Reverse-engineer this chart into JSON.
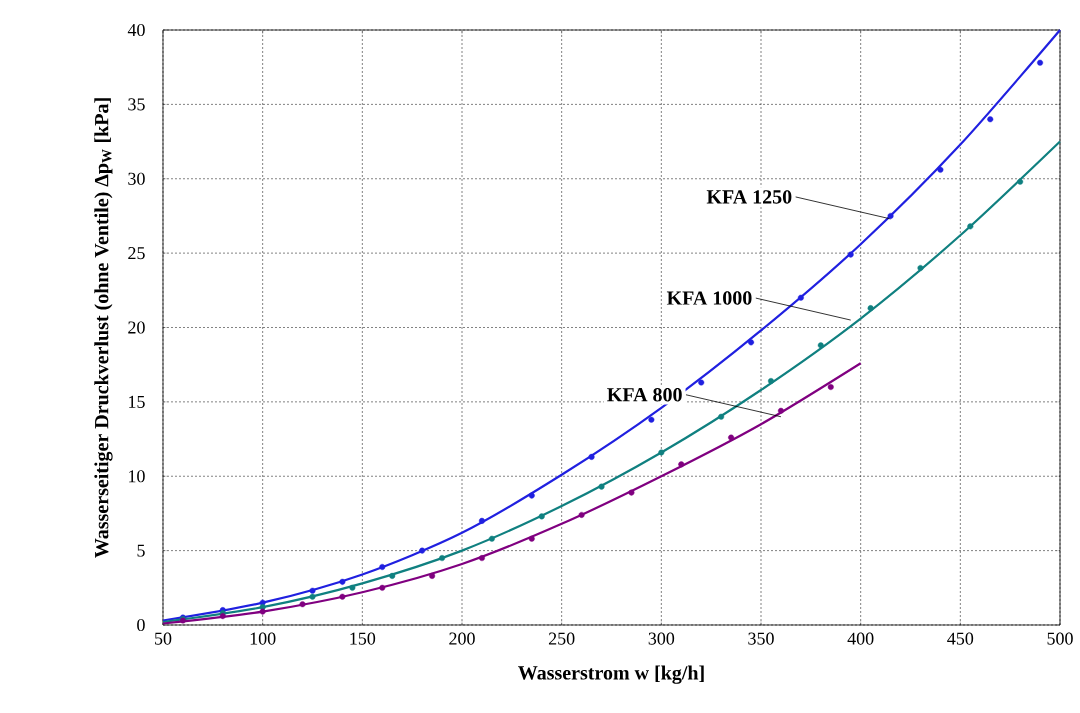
{
  "chart_data": {
    "type": "line",
    "xlabel": "Wasserstrom w   [kg/h]",
    "ylabel": "Wasserseitiger Druckverlust (ohne Ventile) Δp$_{W}$ [kPa]",
    "xlim": [
      50,
      500
    ],
    "ylim": [
      0,
      40
    ],
    "xticks": [
      50,
      100,
      150,
      200,
      250,
      300,
      350,
      400,
      450,
      500
    ],
    "yticks": [
      0,
      5,
      10,
      15,
      20,
      25,
      30,
      35,
      40
    ],
    "grid": true,
    "line_style": "solid",
    "series": [
      {
        "color": "#2020e0",
        "x": [
          50,
          100,
          150,
          200,
          250,
          300,
          350,
          400,
          450,
          500
        ],
        "values": [
          0.3,
          1.5,
          3.4,
          6.2,
          10.1,
          14.6,
          19.8,
          25.6,
          32.3,
          40.0
        ]
      },
      {
        "color": "#108080",
        "x": [
          50,
          100,
          150,
          200,
          250,
          300,
          350,
          400,
          450,
          500
        ],
        "values": [
          0.2,
          1.2,
          2.8,
          5.0,
          8.0,
          11.6,
          15.8,
          20.6,
          26.2,
          32.5
        ]
      },
      {
        "color": "#800080",
        "x": [
          50,
          100,
          150,
          200,
          250,
          300,
          350,
          400
        ],
        "values": [
          0.1,
          0.9,
          2.2,
          4.1,
          6.8,
          10.0,
          13.5,
          17.6
        ]
      },
      {
        "type": "scatter",
        "color": "#2020e0",
        "x": [
          60,
          80,
          100,
          125,
          140,
          160,
          180,
          210,
          235,
          265,
          295,
          320,
          345,
          370,
          395,
          415,
          440,
          465,
          490
        ],
        "values": [
          0.5,
          1.0,
          1.5,
          2.3,
          2.9,
          3.9,
          5.0,
          7.0,
          8.7,
          11.3,
          13.8,
          16.3,
          19.0,
          22.0,
          24.9,
          27.5,
          30.6,
          34.0,
          37.8
        ]
      },
      {
        "type": "scatter",
        "color": "#108080",
        "x": [
          60,
          80,
          100,
          125,
          145,
          165,
          190,
          215,
          240,
          270,
          300,
          330,
          355,
          380,
          405,
          430,
          455,
          480
        ],
        "values": [
          0.4,
          0.8,
          1.2,
          1.9,
          2.5,
          3.3,
          4.5,
          5.8,
          7.3,
          9.3,
          11.6,
          14.0,
          16.4,
          18.8,
          21.3,
          24.0,
          26.8,
          29.8
        ]
      },
      {
        "type": "scatter",
        "color": "#800080",
        "x": [
          60,
          80,
          100,
          120,
          140,
          160,
          185,
          210,
          235,
          260,
          285,
          310,
          335,
          360,
          385
        ],
        "values": [
          0.3,
          0.6,
          0.9,
          1.4,
          1.9,
          2.5,
          3.3,
          4.5,
          5.8,
          7.4,
          8.9,
          10.8,
          12.6,
          14.4,
          16.0
        ]
      }
    ],
    "annotations": [
      {
        "text": "KFA 1250",
        "x": 415,
        "y": 27.3
      },
      {
        "text": "KFA 1000",
        "x": 395,
        "y": 20.5
      },
      {
        "text": "KFA 800",
        "x": 360,
        "y": 14.0
      }
    ]
  }
}
